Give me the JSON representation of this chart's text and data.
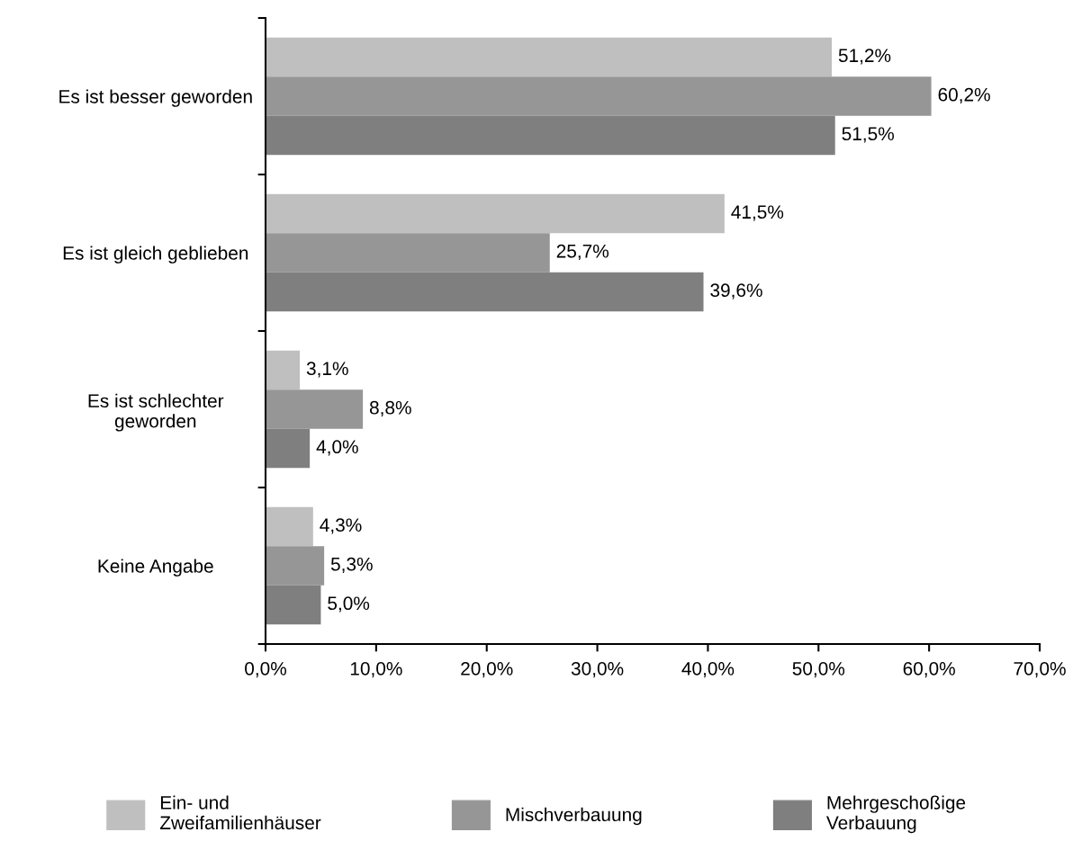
{
  "chart_data": {
    "type": "bar",
    "orientation": "horizontal",
    "categories": [
      "Es ist besser geworden",
      "Es ist gleich geblieben",
      "Es ist schlechter\ngeworden",
      "Keine Angabe"
    ],
    "series": [
      {
        "name": "Ein- und\nZweifamilienhäuser",
        "color": "#bfbfbf",
        "values": [
          51.2,
          41.5,
          3.1,
          4.3
        ],
        "value_labels": [
          "51,2%",
          "41,5%",
          "3,1%",
          "4,3%"
        ]
      },
      {
        "name": "Mischverbauung",
        "color": "#969696",
        "values": [
          60.2,
          25.7,
          8.8,
          5.3
        ],
        "value_labels": [
          "60,2%",
          "25,7%",
          "8,8%",
          "5,3%"
        ]
      },
      {
        "name": "Mehrgeschoßige\nVerbauung",
        "color": "#7f7f7f",
        "values": [
          51.5,
          39.6,
          4.0,
          5.0
        ],
        "value_labels": [
          "51,5%",
          "39,6%",
          "4,0%",
          "5,0%"
        ]
      }
    ],
    "xlim": [
      0,
      70
    ],
    "xticks": [
      {
        "value": 0,
        "label": "0,0%"
      },
      {
        "value": 10,
        "label": "10,0%"
      },
      {
        "value": 20,
        "label": "20,0%"
      },
      {
        "value": 30,
        "label": "30,0%"
      },
      {
        "value": 40,
        "label": "40,0%"
      },
      {
        "value": 50,
        "label": "50,0%"
      },
      {
        "value": 60,
        "label": "60,0%"
      },
      {
        "value": 70,
        "label": "70,0%"
      }
    ],
    "grid": false,
    "legend": "bottom"
  }
}
